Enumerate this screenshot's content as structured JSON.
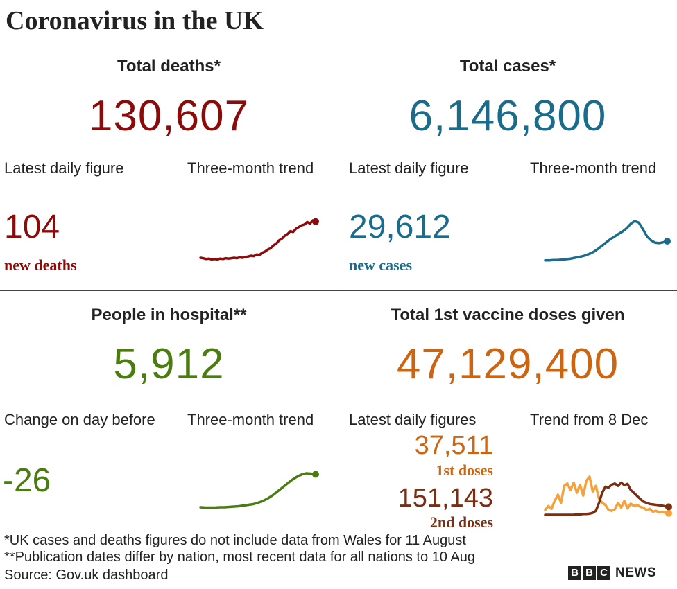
{
  "title": "Coronavirus in the UK",
  "colors": {
    "deaths": "#8b0a0a",
    "cases": "#1b6b8b",
    "hospital": "#4a7c10",
    "vaccine": "#cc6512",
    "vaccine_first": "#f5a23c",
    "vaccine_second": "#7a2e12"
  },
  "deaths": {
    "heading": "Total deaths*",
    "total": "130,607",
    "daily_label": "Latest daily figure",
    "trend_label": "Three-month trend",
    "daily_value": "104",
    "daily_unit": "new deaths"
  },
  "cases": {
    "heading": "Total cases*",
    "total": "6,146,800",
    "daily_label": "Latest daily figure",
    "trend_label": "Three-month trend",
    "daily_value": "29,612",
    "daily_unit": "new cases"
  },
  "hospital": {
    "heading": "People in hospital**",
    "total": "5,912",
    "daily_label": "Change on day before",
    "trend_label": "Three-month trend",
    "daily_value": "-26"
  },
  "vaccine": {
    "heading": "Total 1st vaccine doses given",
    "total": "47,129,400",
    "daily_label": "Latest daily figures",
    "trend_label": "Trend from 8 Dec",
    "first_value": "37,511",
    "first_label": "1st doses",
    "second_value": "151,143",
    "second_label": "2nd doses"
  },
  "notes": {
    "note1": "*UK cases and deaths figures do not include data from Wales for 11 August",
    "note2": "**Publication dates differ by nation, most recent data for all nations to 10 Aug",
    "source": "Source: Gov.uk dashboard"
  },
  "logo": {
    "letters": [
      "B",
      "B",
      "C"
    ],
    "news": "NEWS"
  },
  "chart_data": [
    {
      "type": "line",
      "title": "Deaths three-month trend (relative)",
      "values": [
        0.1,
        0.09,
        0.07,
        0.08,
        0.06,
        0.07,
        0.06,
        0.08,
        0.07,
        0.09,
        0.08,
        0.09,
        0.1,
        0.09,
        0.11,
        0.1,
        0.12,
        0.13,
        0.15,
        0.14,
        0.18,
        0.17,
        0.22,
        0.25,
        0.3,
        0.33,
        0.4,
        0.44,
        0.52,
        0.56,
        0.63,
        0.67,
        0.74,
        0.72,
        0.8,
        0.84,
        0.88,
        0.9,
        0.96,
        0.92,
        1.0,
        0.97
      ]
    },
    {
      "type": "line",
      "title": "Cases three-month trend (relative)",
      "values": [
        0.02,
        0.02,
        0.03,
        0.03,
        0.04,
        0.05,
        0.06,
        0.08,
        0.1,
        0.12,
        0.15,
        0.19,
        0.24,
        0.31,
        0.39,
        0.47,
        0.55,
        0.61,
        0.68,
        0.74,
        0.82,
        0.93,
        1.0,
        0.96,
        0.8,
        0.62,
        0.52,
        0.46,
        0.45,
        0.47,
        0.5
      ]
    },
    {
      "type": "line",
      "title": "Hospital three-month trend (relative)",
      "values": [
        0.02,
        0.01,
        0.01,
        0.01,
        0.02,
        0.02,
        0.03,
        0.04,
        0.05,
        0.07,
        0.09,
        0.11,
        0.15,
        0.2,
        0.27,
        0.36,
        0.47,
        0.58,
        0.69,
        0.8,
        0.89,
        0.96,
        1.0,
        0.99,
        0.97
      ]
    },
    {
      "type": "line",
      "title": "Vaccine doses trend from 8 Dec (relative)",
      "series": [
        {
          "name": "1st doses",
          "values": [
            0.12,
            0.22,
            0.15,
            0.35,
            0.5,
            0.3,
            0.72,
            0.78,
            0.62,
            0.8,
            0.55,
            0.75,
            0.48,
            0.85,
            0.95,
            0.58,
            0.72,
            0.4,
            0.3,
            0.25,
            0.12,
            0.1,
            0.14,
            0.3,
            0.18,
            0.35,
            0.16,
            0.28,
            0.22,
            0.25,
            0.2,
            0.18,
            0.12,
            0.15,
            0.08,
            0.1,
            0.06,
            0.08,
            0.05,
            0.04
          ]
        },
        {
          "name": "2nd doses",
          "values": [
            0,
            0,
            0,
            0,
            0,
            0,
            0,
            0,
            0,
            0,
            0.01,
            0.01,
            0.02,
            0.02,
            0.03,
            0.05,
            0.1,
            0.3,
            0.55,
            0.7,
            0.68,
            0.75,
            0.78,
            0.72,
            0.8,
            0.74,
            0.77,
            0.62,
            0.55,
            0.47,
            0.4,
            0.33,
            0.3,
            0.27,
            0.26,
            0.25,
            0.24,
            0.23,
            0.21,
            0.2
          ]
        }
      ]
    }
  ]
}
